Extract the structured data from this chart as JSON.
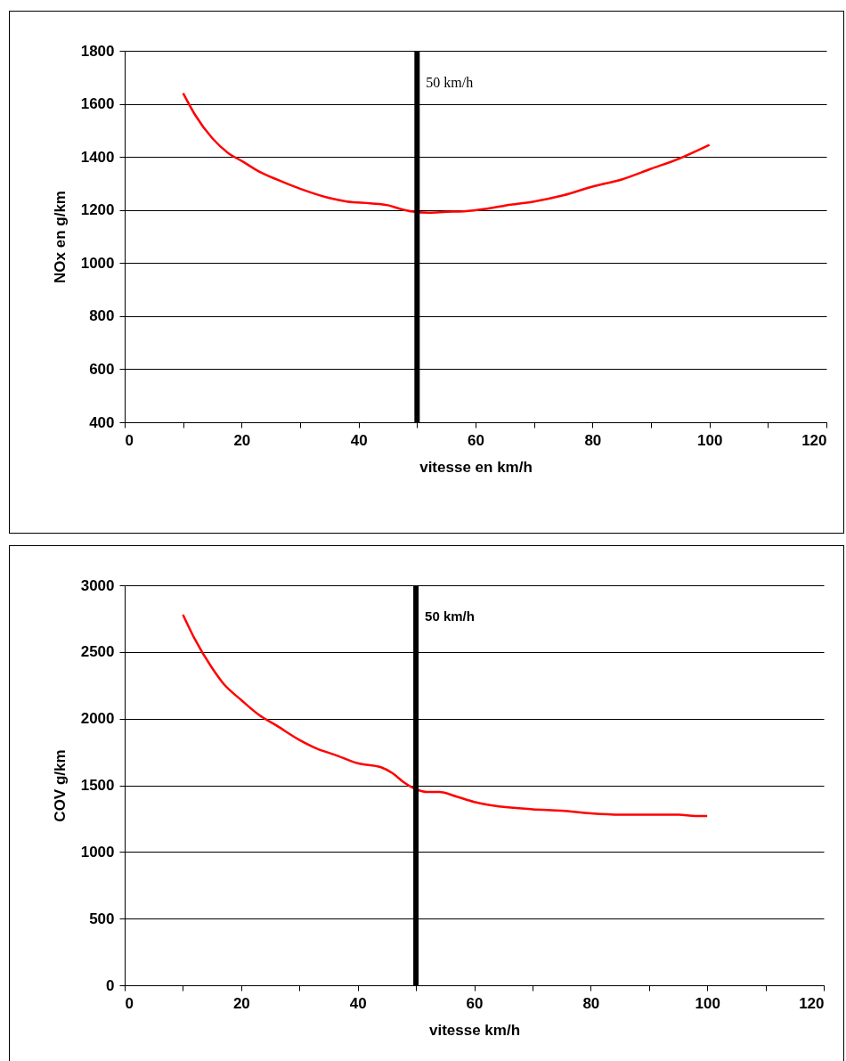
{
  "chart_data": [
    {
      "type": "line",
      "xlabel": "vitesse en km/h",
      "ylabel": "NOx en g/km",
      "x": [
        10,
        12,
        15,
        18,
        20,
        23,
        26,
        30,
        35,
        38,
        42,
        45,
        47,
        49,
        52,
        55,
        58,
        62,
        66,
        70,
        75,
        80,
        85,
        90,
        95,
        100
      ],
      "series": [
        {
          "color": "#ff0000",
          "values": [
            1640,
            1560,
            1470,
            1410,
            1385,
            1345,
            1315,
            1280,
            1245,
            1232,
            1225,
            1218,
            1205,
            1195,
            1190,
            1193,
            1195,
            1205,
            1220,
            1232,
            1255,
            1288,
            1315,
            1355,
            1395,
            1445
          ]
        }
      ],
      "xlim": [
        0,
        120
      ],
      "xticks": [
        0,
        {
          "value": 10,
          "label": null
        },
        20,
        {
          "value": 30,
          "label": null
        },
        40,
        {
          "value": 50,
          "label": null
        },
        60,
        {
          "value": 70,
          "label": null
        },
        80,
        {
          "value": 90,
          "label": null
        },
        100,
        {
          "value": 110,
          "label": null
        },
        120
      ],
      "ylim": [
        400,
        1800
      ],
      "yticks": [
        400,
        600,
        800,
        1000,
        1200,
        1400,
        1600,
        1800
      ],
      "grid": "y",
      "ref_lines": [
        {
          "axis": "x",
          "value": 50,
          "label": "50 km/h",
          "color": "#000000"
        }
      ]
    },
    {
      "type": "line",
      "xlabel": "vitesse km/h",
      "ylabel": "COV g/km",
      "x": [
        10,
        12,
        15,
        17,
        20,
        23,
        26,
        30,
        33,
        36,
        40,
        44,
        46,
        48,
        50,
        52,
        54,
        57,
        60,
        63,
        70,
        75,
        80,
        85,
        90,
        95,
        98,
        100
      ],
      "series": [
        {
          "color": "#ff0000",
          "values": [
            2780,
            2600,
            2380,
            2260,
            2140,
            2030,
            1950,
            1840,
            1775,
            1730,
            1665,
            1635,
            1590,
            1520,
            1470,
            1450,
            1450,
            1415,
            1375,
            1350,
            1320,
            1310,
            1290,
            1280,
            1280,
            1280,
            1270,
            1270
          ]
        }
      ],
      "xlim": [
        0,
        120
      ],
      "xticks": [
        0,
        {
          "value": 10,
          "label": null
        },
        20,
        {
          "value": 30,
          "label": null
        },
        40,
        {
          "value": 50,
          "label": null
        },
        60,
        {
          "value": 70,
          "label": null
        },
        80,
        {
          "value": 90,
          "label": null
        },
        100,
        {
          "value": 110,
          "label": null
        },
        120
      ],
      "ylim": [
        0,
        3000
      ],
      "yticks": [
        0,
        500,
        1000,
        1500,
        2000,
        2500,
        3000
      ],
      "grid": "y",
      "ref_lines": [
        {
          "axis": "x",
          "value": 50,
          "label": "50 km/h",
          "color": "#000000"
        }
      ]
    }
  ]
}
